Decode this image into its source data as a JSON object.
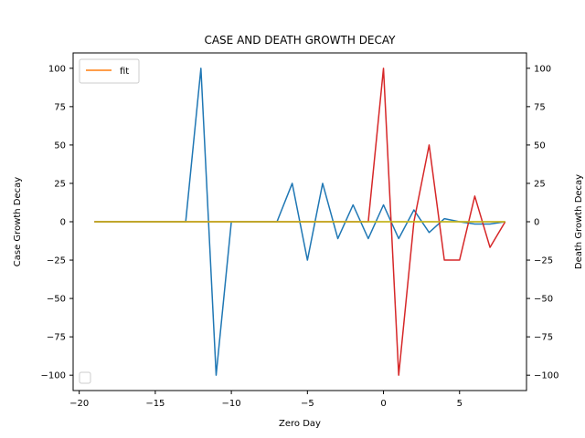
{
  "chart_data": {
    "type": "line",
    "title": "CASE AND DEATH GROWTH DECAY",
    "xlabel": "Zero Day",
    "ylabel_left": "Case Growth Decay",
    "ylabel_right": "Death Growth Decay",
    "xlim": [
      -20.4,
      9.4
    ],
    "ylim_left": [
      -110,
      110
    ],
    "ylim_right": [
      -110,
      110
    ],
    "xticks": [
      -20,
      -15,
      -10,
      -5,
      0,
      5
    ],
    "yticks_left": [
      -100,
      -75,
      -50,
      -25,
      0,
      25,
      50,
      75,
      100
    ],
    "yticks_right": [
      -100,
      -75,
      -50,
      -25,
      0,
      25,
      50,
      75,
      100
    ],
    "grid": false,
    "legend_left": {
      "placement": "upper-left",
      "entries": [
        "fit"
      ]
    },
    "legend_right": {
      "placement": "lower-left",
      "entries": []
    },
    "x": [
      -19,
      -18,
      -17,
      -16,
      -15,
      -14,
      -13,
      -12,
      -11,
      -10,
      -9,
      -8,
      -7,
      -6,
      -5,
      -4,
      -3,
      -2,
      -1,
      0,
      1,
      2,
      3,
      4,
      5,
      6,
      7,
      8
    ],
    "series": [
      {
        "axis": "left",
        "color": "#1f77b4",
        "values": [
          0,
          0,
          0,
          0,
          0,
          0,
          0,
          100,
          -100,
          0,
          0,
          0,
          0,
          25,
          -25,
          25,
          -11,
          11,
          -11,
          11,
          -11,
          7.7,
          -7,
          2,
          0,
          -1.5,
          -1.5,
          0
        ]
      },
      {
        "name": "fit",
        "axis": "left",
        "color": "#ff7f0e",
        "values": [
          0,
          0,
          0,
          0,
          0,
          0,
          0,
          0,
          0,
          0,
          0,
          0,
          0,
          0,
          0,
          0,
          0,
          0,
          0,
          0,
          0,
          0,
          0,
          0,
          0,
          0,
          0,
          0
        ]
      },
      {
        "axis": "right",
        "color": "#d62728",
        "values": [
          0,
          0,
          0,
          0,
          0,
          0,
          0,
          0,
          0,
          0,
          0,
          0,
          0,
          0,
          0,
          0,
          0,
          0,
          0,
          100,
          -100,
          0,
          50,
          -25,
          -25,
          16.7,
          -16.7,
          0
        ]
      },
      {
        "axis": "right",
        "color": "#bcbd22",
        "values": [
          0,
          0,
          0,
          0,
          0,
          0,
          0,
          0,
          0,
          0,
          0,
          0,
          0,
          0,
          0,
          0,
          0,
          0,
          0,
          0,
          0,
          0,
          0,
          0,
          0,
          0,
          0,
          0
        ]
      }
    ]
  }
}
